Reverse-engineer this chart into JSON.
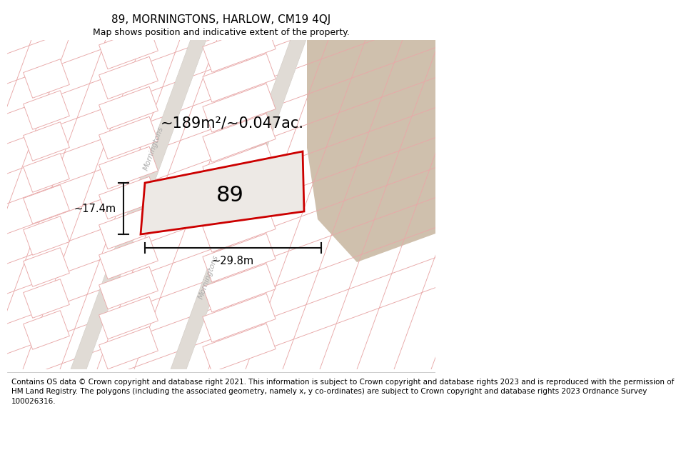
{
  "title": "89, MORNINGTONS, HARLOW, CM19 4QJ",
  "subtitle": "Map shows position and indicative extent of the property.",
  "footer_line1": "Contains OS data © Crown copyright and database right 2021. This information is subject to Crown copyright and database rights 2023 and is reproduced with the permission of",
  "footer_line2": "HM Land Registry. The polygons (including the associated geometry, namely x, y co-ordinates) are subject to Crown copyright and database rights 2023 Ordnance Survey",
  "footer_line3": "100026316.",
  "area_label": "~189m²/~0.047ac.",
  "number_label": "89",
  "width_label": "~29.8m",
  "height_label": "~17.4m",
  "map_bg": "#f4f2f0",
  "block_fill": "#f8f7f6",
  "beige_color": "#cfc0ad",
  "parcel_fill": "#ede9e5",
  "parcel_edge": "#cc0000",
  "grid_color": "#e8a8a8",
  "road_fill": "#e0dbd5",
  "road_edge": "#d0cac4",
  "street_label_color": "#aaaaaa",
  "dim_color": "#111111",
  "title_fontsize": 11,
  "subtitle_fontsize": 9,
  "footer_fontsize": 7.5,
  "area_fontsize": 15,
  "number_fontsize": 22,
  "dim_fontsize": 10.5
}
